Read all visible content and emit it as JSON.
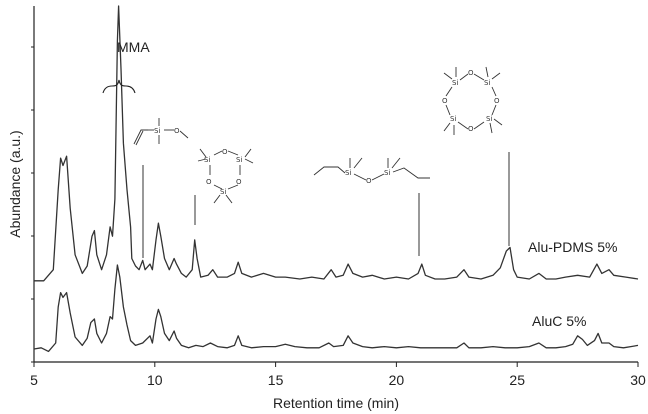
{
  "chart_data": {
    "type": "line",
    "xlabel": "Retention time (min)",
    "ylabel": "Abundance (a.u.)",
    "xlim": [
      5,
      30
    ],
    "x_ticks": [
      "5",
      "10",
      "15",
      "20",
      "25",
      "30"
    ],
    "annotations": {
      "mma": "MMA",
      "si_labels": {
        "si": "Si",
        "o": "O"
      }
    },
    "series": [
      {
        "name": "Alu-PDMS 5%",
        "points": [
          [
            5.0,
            0.06
          ],
          [
            5.4,
            0.06
          ],
          [
            5.8,
            0.12
          ],
          [
            6.0,
            0.55
          ],
          [
            6.1,
            0.72
          ],
          [
            6.2,
            0.68
          ],
          [
            6.35,
            0.73
          ],
          [
            6.5,
            0.45
          ],
          [
            6.7,
            0.2
          ],
          [
            7.0,
            0.1
          ],
          [
            7.2,
            0.14
          ],
          [
            7.4,
            0.3
          ],
          [
            7.5,
            0.33
          ],
          [
            7.6,
            0.2
          ],
          [
            7.8,
            0.12
          ],
          [
            8.0,
            0.2
          ],
          [
            8.15,
            0.35
          ],
          [
            8.25,
            0.3
          ],
          [
            8.35,
            0.5
          ],
          [
            8.45,
            1.35
          ],
          [
            8.5,
            1.55
          ],
          [
            8.6,
            1.2
          ],
          [
            8.7,
            0.8
          ],
          [
            8.85,
            0.55
          ],
          [
            9.0,
            0.35
          ],
          [
            9.05,
            0.18
          ],
          [
            9.2,
            0.14
          ],
          [
            9.35,
            0.12
          ],
          [
            9.5,
            0.17
          ],
          [
            9.6,
            0.12
          ],
          [
            9.8,
            0.15
          ],
          [
            9.9,
            0.12
          ],
          [
            10.05,
            0.28
          ],
          [
            10.15,
            0.37
          ],
          [
            10.25,
            0.3
          ],
          [
            10.4,
            0.18
          ],
          [
            10.6,
            0.12
          ],
          [
            10.8,
            0.18
          ],
          [
            10.9,
            0.15
          ],
          [
            11.1,
            0.1
          ],
          [
            11.3,
            0.08
          ],
          [
            11.55,
            0.12
          ],
          [
            11.65,
            0.28
          ],
          [
            11.75,
            0.18
          ],
          [
            11.9,
            0.08
          ],
          [
            12.2,
            0.09
          ],
          [
            12.4,
            0.12
          ],
          [
            12.6,
            0.08
          ],
          [
            13.0,
            0.08
          ],
          [
            13.3,
            0.1
          ],
          [
            13.45,
            0.16
          ],
          [
            13.6,
            0.1
          ],
          [
            14.0,
            0.08
          ],
          [
            14.5,
            0.1
          ],
          [
            15.0,
            0.08
          ],
          [
            15.4,
            0.08
          ],
          [
            16.0,
            0.07
          ],
          [
            16.5,
            0.08
          ],
          [
            17.0,
            0.07
          ],
          [
            17.3,
            0.12
          ],
          [
            17.5,
            0.08
          ],
          [
            17.8,
            0.09
          ],
          [
            18.0,
            0.15
          ],
          [
            18.2,
            0.1
          ],
          [
            18.6,
            0.08
          ],
          [
            19.0,
            0.09
          ],
          [
            19.5,
            0.07
          ],
          [
            20.0,
            0.08
          ],
          [
            20.5,
            0.07
          ],
          [
            20.9,
            0.1
          ],
          [
            21.05,
            0.15
          ],
          [
            21.2,
            0.09
          ],
          [
            21.6,
            0.07
          ],
          [
            22.0,
            0.07
          ],
          [
            22.5,
            0.08
          ],
          [
            22.8,
            0.12
          ],
          [
            23.0,
            0.08
          ],
          [
            23.5,
            0.07
          ],
          [
            24.0,
            0.09
          ],
          [
            24.3,
            0.13
          ],
          [
            24.55,
            0.22
          ],
          [
            24.7,
            0.24
          ],
          [
            24.85,
            0.12
          ],
          [
            25.0,
            0.08
          ],
          [
            25.5,
            0.07
          ],
          [
            25.9,
            0.1
          ],
          [
            26.2,
            0.07
          ],
          [
            26.6,
            0.07
          ],
          [
            27.0,
            0.08
          ],
          [
            27.5,
            0.09
          ],
          [
            28.0,
            0.08
          ],
          [
            28.3,
            0.15
          ],
          [
            28.5,
            0.1
          ],
          [
            28.8,
            0.12
          ],
          [
            29.0,
            0.09
          ],
          [
            29.5,
            0.08
          ],
          [
            30.0,
            0.07
          ]
        ]
      },
      {
        "name": "AluC 5%",
        "points": [
          [
            5.0,
            0.05
          ],
          [
            5.3,
            0.06
          ],
          [
            5.6,
            0.03
          ],
          [
            5.9,
            0.1
          ],
          [
            6.0,
            0.4
          ],
          [
            6.1,
            0.52
          ],
          [
            6.2,
            0.48
          ],
          [
            6.35,
            0.52
          ],
          [
            6.5,
            0.35
          ],
          [
            6.7,
            0.15
          ],
          [
            7.0,
            0.08
          ],
          [
            7.2,
            0.14
          ],
          [
            7.35,
            0.27
          ],
          [
            7.5,
            0.3
          ],
          [
            7.6,
            0.18
          ],
          [
            7.8,
            0.1
          ],
          [
            8.0,
            0.18
          ],
          [
            8.15,
            0.32
          ],
          [
            8.25,
            0.3
          ],
          [
            8.35,
            0.55
          ],
          [
            8.45,
            0.75
          ],
          [
            8.55,
            0.65
          ],
          [
            8.7,
            0.4
          ],
          [
            8.85,
            0.25
          ],
          [
            9.0,
            0.12
          ],
          [
            9.2,
            0.08
          ],
          [
            9.5,
            0.1
          ],
          [
            9.8,
            0.16
          ],
          [
            9.9,
            0.1
          ],
          [
            10.05,
            0.3
          ],
          [
            10.15,
            0.38
          ],
          [
            10.25,
            0.32
          ],
          [
            10.4,
            0.18
          ],
          [
            10.6,
            0.12
          ],
          [
            10.8,
            0.2
          ],
          [
            10.9,
            0.14
          ],
          [
            11.1,
            0.08
          ],
          [
            11.4,
            0.06
          ],
          [
            11.7,
            0.08
          ],
          [
            12.0,
            0.07
          ],
          [
            12.3,
            0.1
          ],
          [
            12.6,
            0.07
          ],
          [
            13.0,
            0.06
          ],
          [
            13.3,
            0.08
          ],
          [
            13.45,
            0.16
          ],
          [
            13.6,
            0.08
          ],
          [
            14.0,
            0.06
          ],
          [
            14.5,
            0.07
          ],
          [
            15.0,
            0.07
          ],
          [
            15.4,
            0.09
          ],
          [
            15.8,
            0.07
          ],
          [
            16.3,
            0.06
          ],
          [
            16.8,
            0.06
          ],
          [
            17.2,
            0.1
          ],
          [
            17.4,
            0.07
          ],
          [
            17.8,
            0.08
          ],
          [
            18.0,
            0.16
          ],
          [
            18.2,
            0.1
          ],
          [
            18.6,
            0.07
          ],
          [
            19.0,
            0.06
          ],
          [
            19.5,
            0.07
          ],
          [
            20.0,
            0.06
          ],
          [
            20.5,
            0.07
          ],
          [
            21.0,
            0.06
          ],
          [
            21.5,
            0.06
          ],
          [
            22.0,
            0.06
          ],
          [
            22.5,
            0.06
          ],
          [
            22.8,
            0.1
          ],
          [
            23.0,
            0.06
          ],
          [
            23.5,
            0.06
          ],
          [
            24.0,
            0.07
          ],
          [
            24.5,
            0.06
          ],
          [
            25.0,
            0.06
          ],
          [
            25.5,
            0.07
          ],
          [
            25.9,
            0.1
          ],
          [
            26.2,
            0.06
          ],
          [
            26.6,
            0.06
          ],
          [
            27.0,
            0.07
          ],
          [
            27.3,
            0.09
          ],
          [
            27.5,
            0.16
          ],
          [
            27.7,
            0.13
          ],
          [
            27.9,
            0.08
          ],
          [
            28.2,
            0.12
          ],
          [
            28.35,
            0.18
          ],
          [
            28.5,
            0.1
          ],
          [
            28.8,
            0.1
          ],
          [
            29.0,
            0.07
          ],
          [
            29.4,
            0.06
          ],
          [
            29.7,
            0.07
          ],
          [
            30.0,
            0.08
          ]
        ]
      }
    ],
    "grid": false,
    "colors": {
      "line": "#333333",
      "axis": "#222222"
    }
  }
}
